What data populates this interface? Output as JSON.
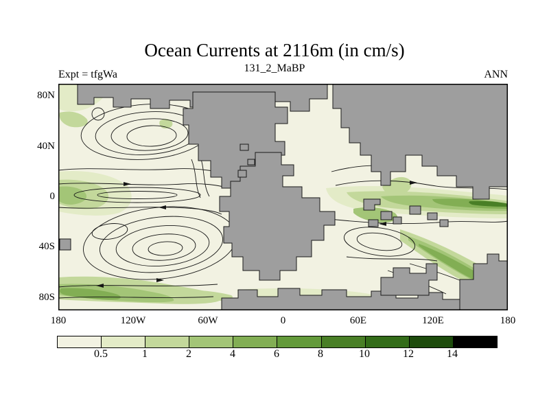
{
  "header": {
    "title": "Ocean Currents at 2116m (in cm/s)",
    "subtitle": "131_2_MaBP",
    "experiment": "Expt = tfgWa",
    "season": "ANN"
  },
  "axes": {
    "y_ticks": [
      "80N",
      "40N",
      "0",
      "40S",
      "80S"
    ],
    "x_ticks": [
      "180",
      "120W",
      "60W",
      "0",
      "60E",
      "120E",
      "180"
    ]
  },
  "colorbar": {
    "labels": [
      "0.5",
      "1",
      "2",
      "4",
      "6",
      "8",
      "10",
      "12",
      "14"
    ],
    "colors": [
      "#f2f2e2",
      "#e3ebc7",
      "#c3d89b",
      "#a3c577",
      "#82ae54",
      "#639a3a",
      "#497f26",
      "#336c19",
      "#1d4b0c",
      "#000000"
    ]
  },
  "map": {
    "land_color": "#9e9e9e",
    "ocean_color": "#f2f2e2",
    "coast_color": "#1a1a1a",
    "stream_color": "#151515"
  },
  "chart_data": {
    "type": "heatmap",
    "title": "Ocean Currents at 2116m (in cm/s)",
    "subtitle": "131_2_MaBP",
    "annotations": [
      "Expt = tfgWa",
      "ANN"
    ],
    "x_ticks": [
      "180",
      "120W",
      "60W",
      "0",
      "60E",
      "120E",
      "180"
    ],
    "y_ticks": [
      "80N",
      "40N",
      "0",
      "40S",
      "80S"
    ],
    "colorbar_levels": [
      0.5,
      1,
      2,
      4,
      6,
      8,
      10,
      12,
      14
    ],
    "colorbar_colors": [
      "#f2f2e2",
      "#e3ebc7",
      "#c3d89b",
      "#a3c577",
      "#82ae54",
      "#639a3a",
      "#497f26",
      "#336c19",
      "#1d4b0c",
      "#000000"
    ],
    "units": "cm/s",
    "depth_m": 2116,
    "legend_position": "bottom",
    "grid": false,
    "land_color": "#9e9e9e",
    "notes": "Filled contours of ocean current speed on a paleogeographic world map (gray = land) with black streamline contours and flow arrows; highest speeds along equatorial and southern boundary currents"
  }
}
